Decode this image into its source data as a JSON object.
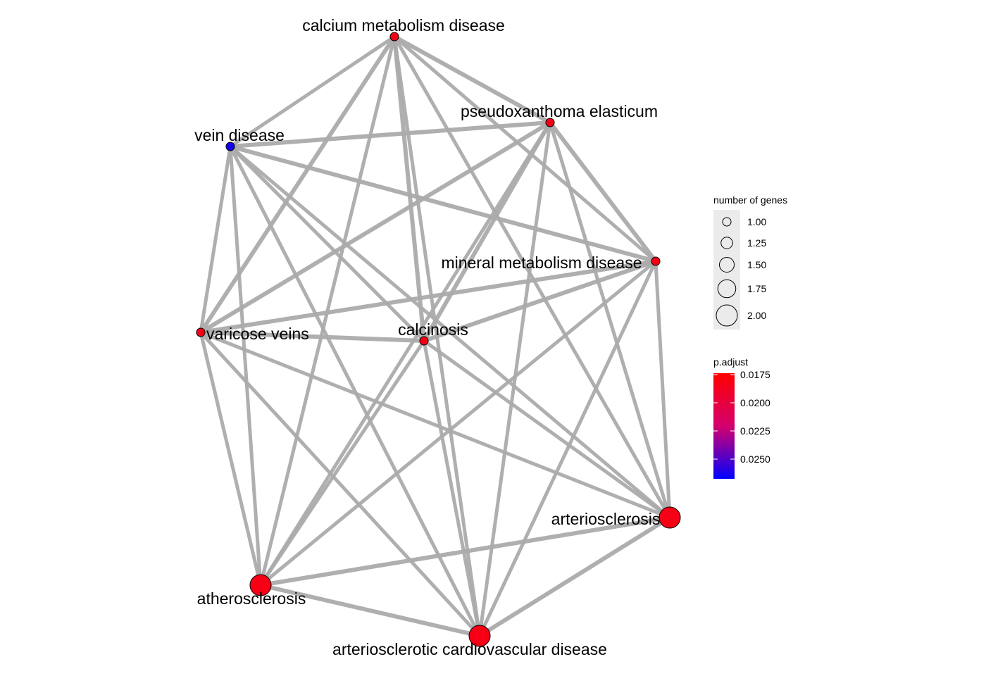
{
  "network": {
    "nodes": [
      {
        "id": "calcium_metabolism_disease",
        "label": "calcium metabolism disease",
        "genes": 1,
        "p_adjust": 0.0175
      },
      {
        "id": "pseudoxanthoma_elasticum",
        "label": "pseudoxanthoma elasticum",
        "genes": 1,
        "p_adjust": 0.0175
      },
      {
        "id": "vein_disease",
        "label": "vein disease",
        "genes": 1,
        "p_adjust": 0.0265
      },
      {
        "id": "mineral_metabolism_disease",
        "label": "mineral metabolism disease",
        "genes": 1,
        "p_adjust": 0.0175
      },
      {
        "id": "varicose_veins",
        "label": "varicose veins",
        "genes": 1,
        "p_adjust": 0.0175
      },
      {
        "id": "calcinosis",
        "label": "calcinosis",
        "genes": 1,
        "p_adjust": 0.0175
      },
      {
        "id": "arteriosclerosis",
        "label": "arteriosclerosis",
        "genes": 2,
        "p_adjust": 0.0175
      },
      {
        "id": "atherosclerosis",
        "label": "atherosclerosis",
        "genes": 2,
        "p_adjust": 0.0175
      },
      {
        "id": "arteriosclerotic_cardiovascular_disease",
        "label": "arteriosclerotic cardiovascular disease",
        "genes": 2,
        "p_adjust": 0.0175
      }
    ],
    "edges": [
      [
        "calcium_metabolism_disease",
        "pseudoxanthoma_elasticum"
      ],
      [
        "calcium_metabolism_disease",
        "vein_disease"
      ],
      [
        "calcium_metabolism_disease",
        "mineral_metabolism_disease"
      ],
      [
        "calcium_metabolism_disease",
        "varicose_veins"
      ],
      [
        "calcium_metabolism_disease",
        "calcinosis"
      ],
      [
        "calcium_metabolism_disease",
        "arteriosclerosis"
      ],
      [
        "calcium_metabolism_disease",
        "atherosclerosis"
      ],
      [
        "calcium_metabolism_disease",
        "arteriosclerotic_cardiovascular_disease"
      ],
      [
        "pseudoxanthoma_elasticum",
        "vein_disease"
      ],
      [
        "pseudoxanthoma_elasticum",
        "mineral_metabolism_disease"
      ],
      [
        "pseudoxanthoma_elasticum",
        "varicose_veins"
      ],
      [
        "pseudoxanthoma_elasticum",
        "calcinosis"
      ],
      [
        "pseudoxanthoma_elasticum",
        "arteriosclerosis"
      ],
      [
        "pseudoxanthoma_elasticum",
        "atherosclerosis"
      ],
      [
        "pseudoxanthoma_elasticum",
        "arteriosclerotic_cardiovascular_disease"
      ],
      [
        "vein_disease",
        "mineral_metabolism_disease"
      ],
      [
        "vein_disease",
        "varicose_veins"
      ],
      [
        "vein_disease",
        "calcinosis"
      ],
      [
        "vein_disease",
        "arteriosclerosis"
      ],
      [
        "vein_disease",
        "atherosclerosis"
      ],
      [
        "vein_disease",
        "arteriosclerotic_cardiovascular_disease"
      ],
      [
        "mineral_metabolism_disease",
        "varicose_veins"
      ],
      [
        "mineral_metabolism_disease",
        "calcinosis"
      ],
      [
        "mineral_metabolism_disease",
        "arteriosclerosis"
      ],
      [
        "mineral_metabolism_disease",
        "atherosclerosis"
      ],
      [
        "mineral_metabolism_disease",
        "arteriosclerotic_cardiovascular_disease"
      ],
      [
        "varicose_veins",
        "calcinosis"
      ],
      [
        "varicose_veins",
        "arteriosclerosis"
      ],
      [
        "varicose_veins",
        "atherosclerosis"
      ],
      [
        "varicose_veins",
        "arteriosclerotic_cardiovascular_disease"
      ],
      [
        "calcinosis",
        "arteriosclerosis"
      ],
      [
        "calcinosis",
        "atherosclerosis"
      ],
      [
        "calcinosis",
        "arteriosclerotic_cardiovascular_disease"
      ],
      [
        "arteriosclerosis",
        "atherosclerosis"
      ],
      [
        "arteriosclerosis",
        "arteriosclerotic_cardiovascular_disease"
      ],
      [
        "atherosclerosis",
        "arteriosclerotic_cardiovascular_disease"
      ]
    ]
  },
  "legend": {
    "size_title": "number of genes",
    "size_items": [
      "1.00",
      "1.25",
      "1.50",
      "1.75",
      "2.00"
    ],
    "color_title": "p.adjust",
    "color_ticks": [
      "0.0175",
      "0.0200",
      "0.0225",
      "0.0250"
    ],
    "color_high": "#FF0000",
    "color_low": "#0000FF"
  },
  "colors": {
    "edge": "#ABABAB",
    "node_border": "#000000",
    "legend_key_bg": "#EBEBEB"
  }
}
